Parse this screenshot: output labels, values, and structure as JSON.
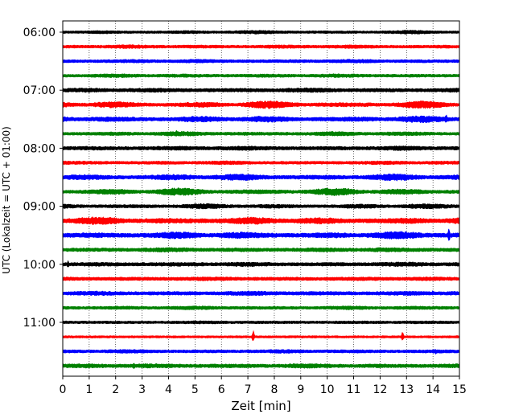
{
  "chart_data": {
    "type": "line",
    "chart_kind": "helicorder seismogram",
    "xlabel": "Zeit  [min]",
    "ylabel": "UTC (Lokalzeit = UTC + 01:00)",
    "xlim": [
      0,
      15
    ],
    "x_ticks": [
      0,
      1,
      2,
      3,
      4,
      5,
      6,
      7,
      8,
      9,
      10,
      11,
      12,
      13,
      14,
      15
    ],
    "y_tick_labels": [
      "06:00",
      "07:00",
      "08:00",
      "09:00",
      "10:00",
      "11:00"
    ],
    "trace_interval_min": 15,
    "trace_start_times": [
      "06:00",
      "06:15",
      "06:30",
      "06:45",
      "07:00",
      "07:15",
      "07:30",
      "07:45",
      "08:00",
      "08:15",
      "08:30",
      "08:45",
      "09:00",
      "09:15",
      "09:30",
      "09:45",
      "10:00",
      "10:15",
      "10:30",
      "10:45",
      "11:00",
      "11:15",
      "11:30",
      "11:45"
    ],
    "grid": "vertical dotted lines at each minute",
    "color_cycle": [
      "#000000",
      "#ff0000",
      "#0000ff",
      "#008000"
    ],
    "traces": [
      {
        "start": "06:00",
        "color": "#000000",
        "amplitude": 2.5,
        "modulation": 0.4,
        "spikes": []
      },
      {
        "start": "06:15",
        "color": "#ff0000",
        "amplitude": 2.5,
        "modulation": 0.3,
        "spikes": []
      },
      {
        "start": "06:30",
        "color": "#0000ff",
        "amplitude": 2.5,
        "modulation": 0.3,
        "spikes": []
      },
      {
        "start": "06:45",
        "color": "#008000",
        "amplitude": 2.5,
        "modulation": 0.3,
        "spikes": []
      },
      {
        "start": "07:00",
        "color": "#000000",
        "amplitude": 3,
        "modulation": 0.3,
        "spikes": []
      },
      {
        "start": "07:15",
        "color": "#ff0000",
        "amplitude": 5,
        "modulation": 0.6,
        "spikes": []
      },
      {
        "start": "07:30",
        "color": "#0000ff",
        "amplitude": 4.5,
        "modulation": 0.5,
        "spikes": [
          {
            "x": 14.5,
            "h": 6
          }
        ]
      },
      {
        "start": "07:45",
        "color": "#008000",
        "amplitude": 3,
        "modulation": 0.4,
        "spikes": [
          {
            "x": 4.3,
            "h": 5
          }
        ]
      },
      {
        "start": "08:00",
        "color": "#000000",
        "amplitude": 3,
        "modulation": 0.3,
        "spikes": []
      },
      {
        "start": "08:15",
        "color": "#ff0000",
        "amplitude": 2.5,
        "modulation": 0.3,
        "spikes": []
      },
      {
        "start": "08:30",
        "color": "#0000ff",
        "amplitude": 4.5,
        "modulation": 0.5,
        "spikes": []
      },
      {
        "start": "08:45",
        "color": "#008000",
        "amplitude": 5,
        "modulation": 0.6,
        "spikes": []
      },
      {
        "start": "09:00",
        "color": "#000000",
        "amplitude": 3.5,
        "modulation": 0.5,
        "spikes": [
          {
            "x": 13.2,
            "h": 5
          }
        ]
      },
      {
        "start": "09:15",
        "color": "#ff0000",
        "amplitude": 5,
        "modulation": 0.5,
        "spikes": []
      },
      {
        "start": "09:30",
        "color": "#0000ff",
        "amplitude": 5,
        "modulation": 0.5,
        "spikes": [
          {
            "x": 14.6,
            "h": 10
          }
        ]
      },
      {
        "start": "09:45",
        "color": "#008000",
        "amplitude": 3,
        "modulation": 0.3,
        "spikes": []
      },
      {
        "start": "10:00",
        "color": "#000000",
        "amplitude": 3,
        "modulation": 0.3,
        "spikes": [
          {
            "x": 0.2,
            "h": 5
          },
          {
            "x": 4.4,
            "h": 4
          }
        ]
      },
      {
        "start": "10:15",
        "color": "#ff0000",
        "amplitude": 2.5,
        "modulation": 0.2,
        "spikes": []
      },
      {
        "start": "10:30",
        "color": "#0000ff",
        "amplitude": 3,
        "modulation": 0.3,
        "spikes": [
          {
            "x": 14,
            "h": 4
          }
        ]
      },
      {
        "start": "10:45",
        "color": "#008000",
        "amplitude": 2.5,
        "modulation": 0.3,
        "spikes": []
      },
      {
        "start": "11:00",
        "color": "#000000",
        "amplitude": 2,
        "modulation": 0.2,
        "spikes": []
      },
      {
        "start": "11:15",
        "color": "#ff0000",
        "amplitude": 1.5,
        "modulation": 0.1,
        "spikes": [
          {
            "x": 7.2,
            "h": 9
          },
          {
            "x": 12.85,
            "h": 7
          }
        ]
      },
      {
        "start": "11:30",
        "color": "#0000ff",
        "amplitude": 2.5,
        "modulation": 0.3,
        "spikes": [
          {
            "x": 14.1,
            "h": 4
          }
        ]
      },
      {
        "start": "11:45",
        "color": "#008000",
        "amplitude": 3,
        "modulation": 0.3,
        "spikes": [
          {
            "x": 2.7,
            "h": 5
          }
        ]
      }
    ]
  }
}
